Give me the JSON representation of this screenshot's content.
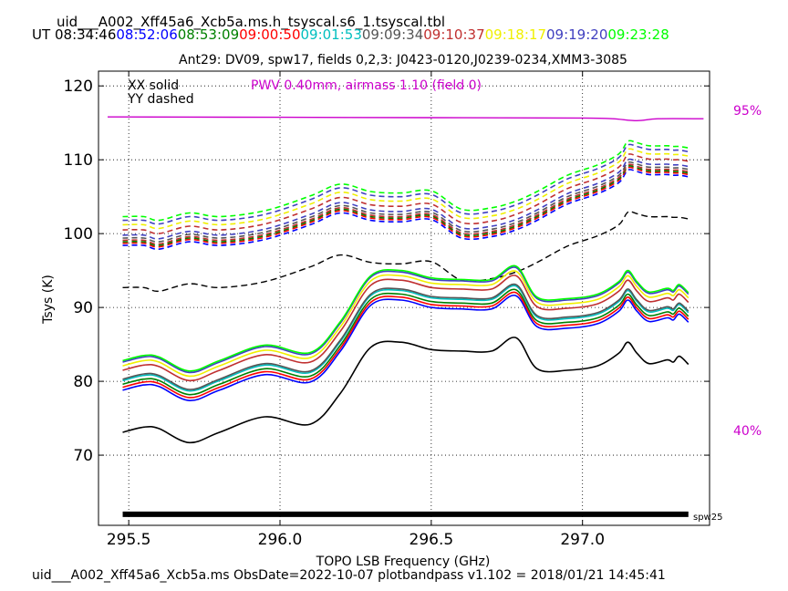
{
  "header": {
    "table_name": "uid___A002_Xff45a6_Xcb5a.ms.h_tsyscal.s6_1.tsyscal.tbl",
    "ut_label": "UT",
    "times": [
      {
        "text": "08:34:46",
        "color": "#000000"
      },
      {
        "text": "08:52:06",
        "color": "#0000ff"
      },
      {
        "text": "08:53:09",
        "color": "#008000"
      },
      {
        "text": "09:00:50",
        "color": "#ff0000"
      },
      {
        "text": "09:01:53",
        "color": "#00bfbf"
      },
      {
        "text": "09:09:34",
        "color": "#555555"
      },
      {
        "text": "09:10:37",
        "color": "#c03030"
      },
      {
        "text": "09:18:17",
        "color": "#f0f000"
      },
      {
        "text": "09:19:20",
        "color": "#4040c0"
      },
      {
        "text": "09:23:28",
        "color": "#00ff00"
      }
    ]
  },
  "footer": {
    "text": "uid___A002_Xff45a6_Xcb5a.ms  ObsDate=2022-10-07   plotbandpass v1.102 = 2018/01/21 14:45:41"
  },
  "chart_data": {
    "type": "line",
    "title": "Ant29: DV09,  spw17,  fields 0,2,3: J0423-0120,J0239-0234,XMM3-3085",
    "xlabel": "TOPO LSB Frequency (GHz)",
    "ylabel": "Tsys (K)",
    "xlim": [
      295.4,
      297.42
    ],
    "ylim": [
      60.5,
      122
    ],
    "xticks": [
      295.5,
      296.0,
      296.5,
      297.0
    ],
    "xtick_labels": [
      "295.5",
      "296.0",
      "296.5",
      "297.0"
    ],
    "yticks": [
      70,
      80,
      90,
      100,
      110,
      120
    ],
    "ytick_labels": [
      "70",
      "80",
      "90",
      "100",
      "110",
      "120"
    ],
    "grid": true,
    "legend_text": {
      "xx": "XX solid",
      "yy": "YY dashed",
      "pwv": "PWV 0.40mm, airmass 1.10 (field 0)",
      "pwv_color": "#cc00cc"
    },
    "atm_labels": [
      {
        "text": "95%",
        "color": "#cc00cc"
      },
      {
        "text": "40%",
        "color": "#cc00cc"
      }
    ],
    "spw_label": "spw25",
    "spw_bar": {
      "x": [
        295.48,
        297.35
      ],
      "y": 62
    },
    "transmission_curve": {
      "color": "#cc00cc",
      "x": [
        295.43,
        296.5,
        297.0,
        297.1,
        297.18,
        297.25,
        297.4
      ],
      "y": [
        115.8,
        115.7,
        115.65,
        115.55,
        115.3,
        115.55,
        115.55
      ]
    },
    "shape_x": [
      295.48,
      295.55,
      295.6,
      295.7,
      295.8,
      295.95,
      296.1,
      296.2,
      296.3,
      296.4,
      296.5,
      296.6,
      296.7,
      296.78,
      296.85,
      296.95,
      297.05,
      297.12,
      297.15,
      297.18,
      297.22,
      297.28,
      297.3,
      297.32,
      297.35
    ],
    "shape_xx": [
      0,
      0.7,
      0.5,
      -1.4,
      0,
      2.1,
      1.1,
      5.3,
      11.5,
      12.2,
      11.2,
      11.0,
      11.0,
      12.8,
      8.6,
      8.4,
      9.0,
      10.7,
      12.2,
      10.7,
      9.3,
      9.8,
      9.5,
      10.3,
      9.2
    ],
    "xx_offsets": [
      73.1,
      78.8,
      79.6,
      79.2,
      80.1,
      80.3,
      81.5,
      82.1,
      82.6,
      82.8
    ],
    "xx_colors": [
      "#000000",
      "#0000ff",
      "#008000",
      "#ff0000",
      "#00bfbf",
      "#555555",
      "#c03030",
      "#f0f000",
      "#4040c0",
      "#00ff00"
    ],
    "shape_yy": [
      0,
      0,
      -0.5,
      0.5,
      0,
      0.8,
      2.8,
      4.4,
      3.4,
      3.2,
      3.5,
      1.0,
      1.2,
      2.1,
      3.4,
      5.6,
      7.0,
      8.5,
      10.2,
      10.0,
      9.6,
      9.6,
      9.5,
      9.5,
      9.3
    ],
    "yy_ref": {
      "offset": 92.7,
      "color": "#000000"
    },
    "yy_offsets": [
      98.4,
      98.7,
      98.9,
      99.1,
      99.4,
      99.8,
      100.5,
      101.2,
      101.8,
      102.3
    ],
    "yy_colors": [
      "#0000ff",
      "#ff0000",
      "#008000",
      "#c03030",
      "#555555",
      "#4040c0",
      "#c03030",
      "#f0f000",
      "#4040c0",
      "#00ff00"
    ]
  }
}
